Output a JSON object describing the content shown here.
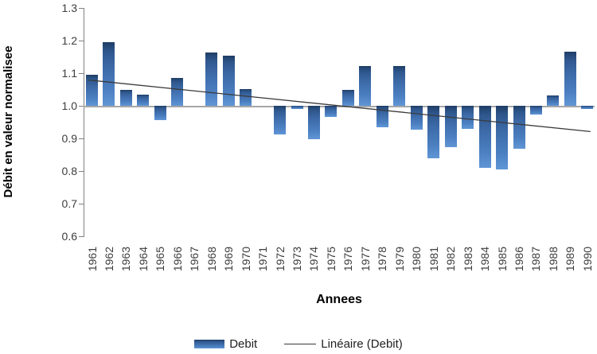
{
  "chart_data": {
    "type": "bar",
    "title": "",
    "xlabel": "Annees",
    "ylabel": "Débit en valeur normalisee",
    "categories": [
      "1961",
      "1962",
      "1963",
      "1964",
      "1965",
      "1966",
      "1967",
      "1968",
      "1969",
      "1970",
      "1971",
      "1972",
      "1973",
      "1974",
      "1975",
      "1976",
      "1977",
      "1978",
      "1979",
      "1980",
      "1981",
      "1982",
      "1983",
      "1984",
      "1985",
      "1986",
      "1987",
      "1988",
      "1989",
      "1990"
    ],
    "values": [
      1.095,
      1.196,
      1.048,
      1.033,
      0.956,
      1.085,
      1.0,
      1.163,
      1.154,
      1.051,
      1.0,
      0.913,
      0.991,
      0.898,
      0.966,
      1.049,
      1.122,
      0.935,
      1.123,
      0.928,
      0.838,
      0.872,
      0.929,
      0.809,
      0.805,
      0.868,
      0.972,
      1.031,
      1.167,
      0.991
    ],
    "baseline": 1.0,
    "ylim": [
      0.6,
      1.3
    ],
    "yticks": [
      1.3,
      1.2,
      1.1,
      1.0,
      0.9,
      0.8,
      0.7,
      0.6
    ],
    "grid": "baseline-only",
    "trend": {
      "start_value": 1.078,
      "end_value": 0.922
    },
    "legend": [
      {
        "label": "Debit",
        "type": "bar"
      },
      {
        "label": "Linéaire (Debit)",
        "type": "line"
      }
    ],
    "legend_position": "bottom",
    "colors": {
      "bar_top": "#1e3d64",
      "bar_bottom": "#6096d6",
      "trend": "#3a3a3a",
      "axis": "#808080",
      "baseline": "#a6a6a6",
      "tick_text": "#3d3d3d"
    }
  }
}
